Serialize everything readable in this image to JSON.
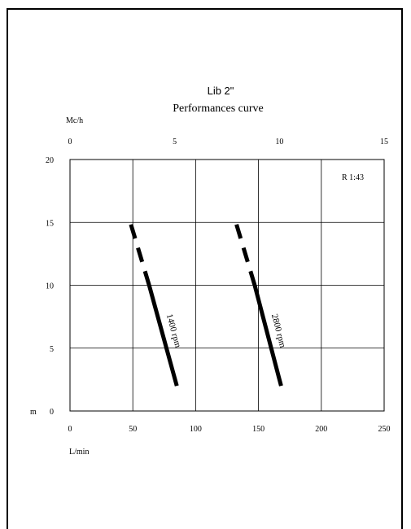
{
  "chart_data": {
    "type": "line",
    "title": "Lib 2\"",
    "subtitle": "Performances curve",
    "x_bottom": {
      "label": "L/min",
      "range": [
        0,
        250
      ],
      "ticks": [
        "0",
        "50",
        "100",
        "150",
        "200",
        "250"
      ]
    },
    "x_top": {
      "label": "Mc/h",
      "range": [
        0,
        15
      ],
      "ticks": [
        "0",
        "5",
        "10",
        "15"
      ]
    },
    "y": {
      "label": "m",
      "range": [
        0,
        20
      ],
      "ticks": [
        "0",
        "5",
        "10",
        "15",
        "20"
      ]
    },
    "grid": true,
    "annotation": "R 1:43",
    "series": [
      {
        "name": "1400 rpm",
        "solid": [
          [
            85,
            2
          ],
          [
            63,
            10
          ]
        ],
        "dashed": [
          [
            63,
            10
          ],
          [
            48,
            15
          ]
        ]
      },
      {
        "name": "2800 rpm",
        "solid": [
          [
            168,
            2
          ],
          [
            147,
            10
          ]
        ],
        "dashed": [
          [
            147,
            10
          ],
          [
            132,
            15
          ]
        ]
      }
    ]
  }
}
